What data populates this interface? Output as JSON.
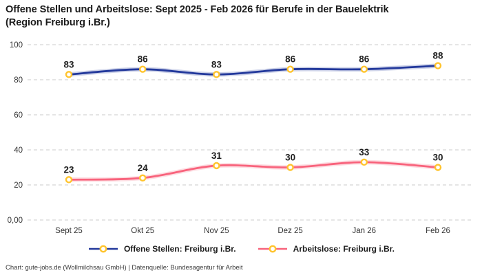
{
  "header": {
    "title_line1": "Offene Stellen und Arbeitslose: Sept 2025 - Feb 2026 für Berufe in der Bauelektrik",
    "title_line2": "(Region Freiburg i.Br.)"
  },
  "chart_data": {
    "type": "line",
    "title": "Offene Stellen und Arbeitslose: Sept 2025 - Feb 2026 für Berufe in der Bauelektrik (Region Freiburg i.Br.)",
    "categories": [
      "Sept 25",
      "Okt 25",
      "Nov 25",
      "Dez 25",
      "Jan 26",
      "Feb 26"
    ],
    "series": [
      {
        "name": "Offene Stellen: Freiburg i.Br.",
        "values": [
          83,
          86,
          83,
          86,
          86,
          88
        ],
        "color": "#22389B"
      },
      {
        "name": "Arbeitslose: Freiburg i.Br.",
        "values": [
          23,
          24,
          31,
          30,
          33,
          30
        ],
        "color": "#F8637C"
      }
    ],
    "marker_color": "#FFC42E",
    "marker_fill": "#FFFFFF",
    "y_ticks": [
      {
        "value": 0,
        "label": "0,00"
      },
      {
        "value": 20,
        "label": "20"
      },
      {
        "value": 40,
        "label": "40"
      },
      {
        "value": 60,
        "label": "60"
      },
      {
        "value": 80,
        "label": "80"
      },
      {
        "value": 100,
        "label": "100"
      }
    ],
    "ylim": [
      0,
      100
    ],
    "grid": "horizontal-dashed",
    "grid_color": "#CBCBCB",
    "legend_position": "bottom",
    "data_labels": true,
    "curve": "smooth"
  },
  "footer": {
    "text": "Chart: gute-jobs.de (Wollmilchsau GmbH) | Datenquelle: Bundesagentur für Arbeit"
  }
}
